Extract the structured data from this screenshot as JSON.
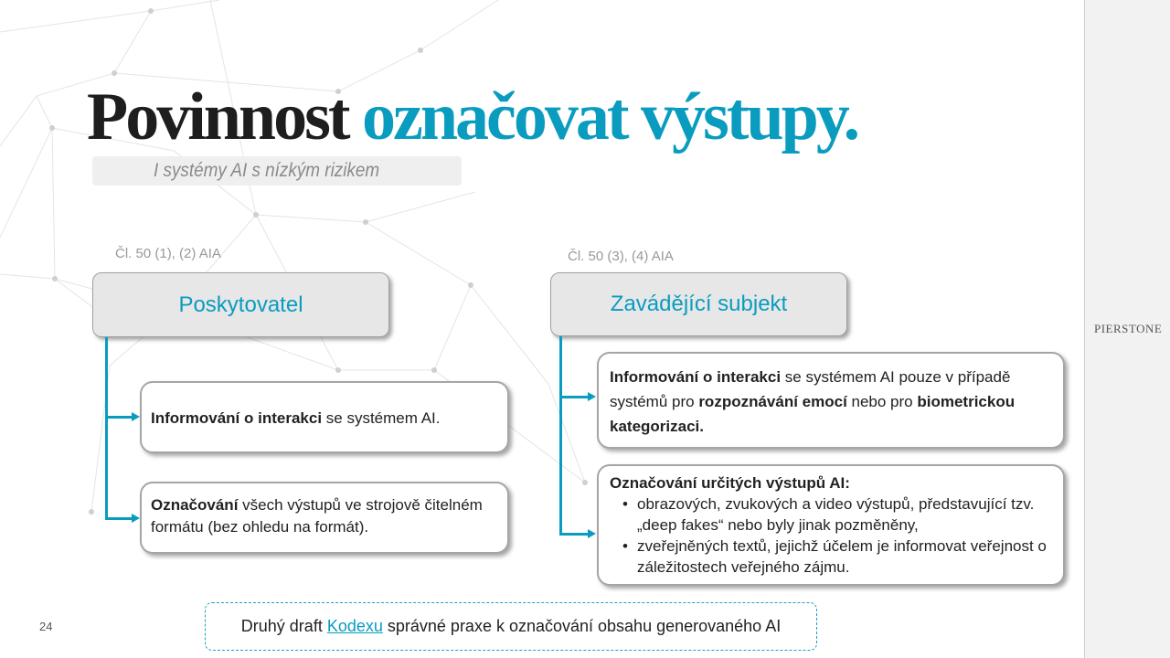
{
  "title": {
    "dark": "Povinnost",
    "accent": "označovat výstupy."
  },
  "subtitle": "I systémy AI s nízkým rizikem",
  "left": {
    "reference": "Čl. 50 (1), (2) AIA",
    "heading": "Poskytovatel",
    "cards": [
      {
        "bold": "Informování o interakci",
        "text": " se systémem AI."
      },
      {
        "bold": "Označování",
        "text": " všech výstupů ve strojově čitelném formátu (bez ohledu na formát)."
      }
    ]
  },
  "right": {
    "reference": "Čl. 50 (3), (4) AIA",
    "heading": "Zavádějící subjekt",
    "card1": {
      "bold1": "Informování o interakci",
      "text1": " se systémem AI pouze v případě systémů pro ",
      "bold2": "rozpoznávání emocí",
      "text2": " nebo pro ",
      "bold3": "biometrickou kategorizaci."
    },
    "card2": {
      "heading": "Označování určitých výstupů AI:",
      "bullets": [
        "obrazových, zvukových a video výstupů, představující tzv. „deep fakes“ nebo byly jinak pozměněny,",
        "zveřejněných textů, jejichž účelem je informovat veřejnost o záležitostech veřejného zájmu."
      ]
    }
  },
  "footer": {
    "before": "Druhý draft",
    "link": "Kodexu",
    "after": "správné praxe k označování obsahu generovaného AI"
  },
  "page_number": "24",
  "brand": "PIERSTONE",
  "colors": {
    "accent": "#0a9cbf",
    "dark": "#1e1e1e",
    "box": "#e7e7e7"
  }
}
